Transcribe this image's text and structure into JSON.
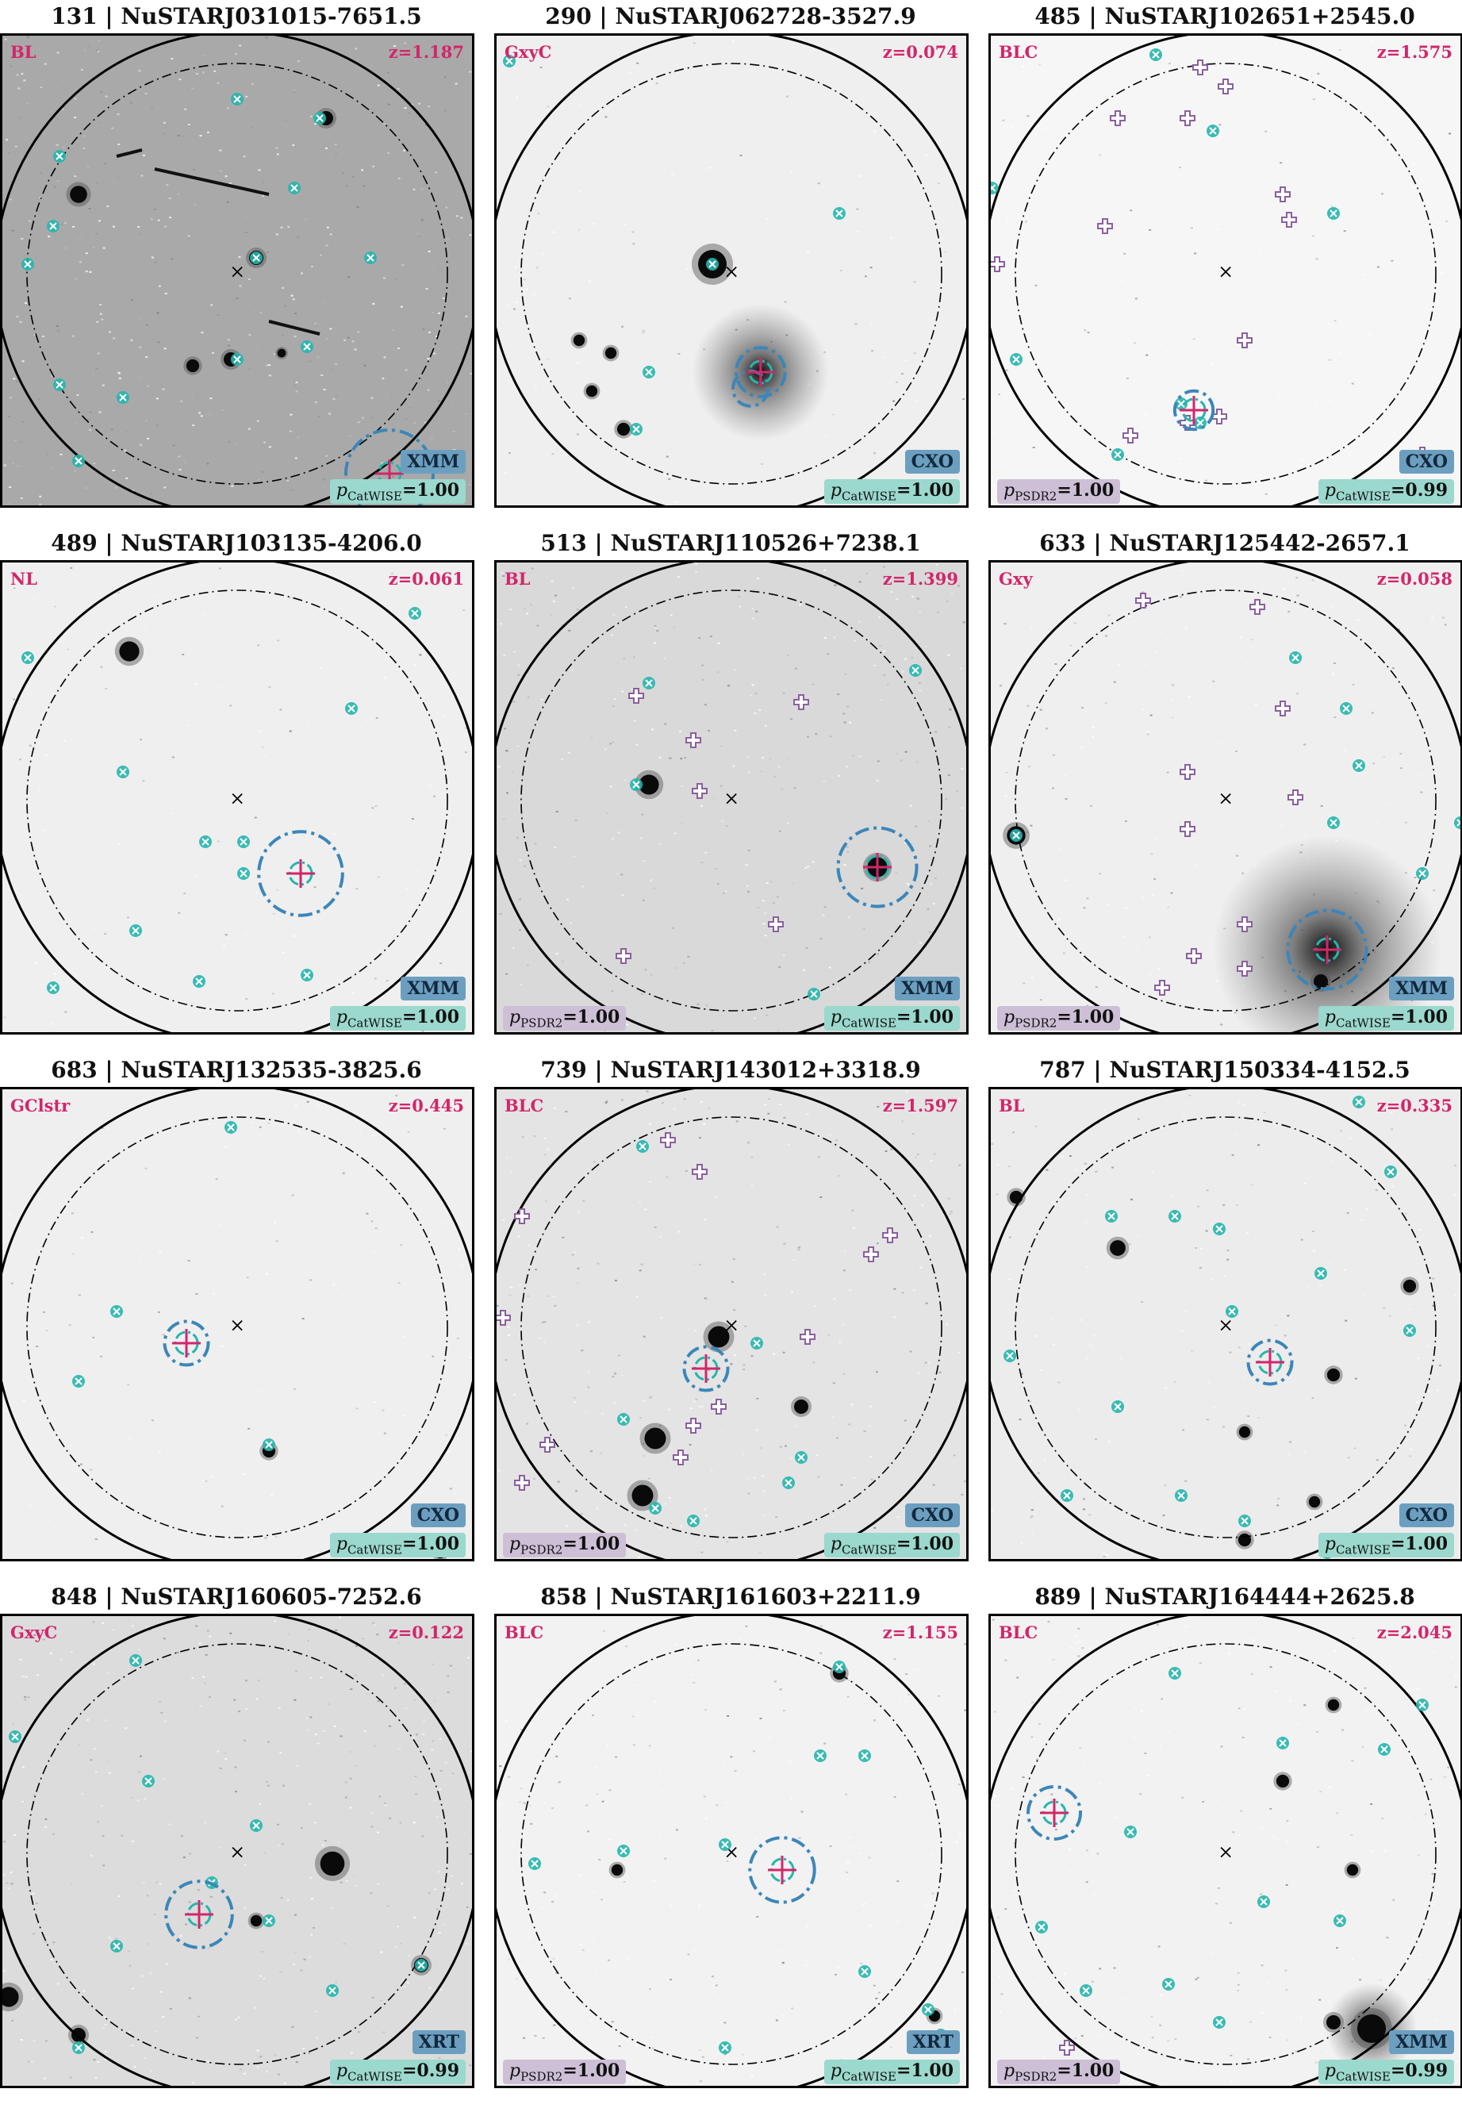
{
  "colors": {
    "classification_text": "#d2266b",
    "instrument_badge": "#6c9fbf",
    "catwise_badge": "#9bd8cd",
    "psdr2_badge": "#cdbfd6",
    "catwise_marker": "#26b5ad",
    "psdr2_marker": "#8a5f9e",
    "xray_position_marker": "#d2266b",
    "error_circle": "#3b86b9"
  },
  "icons": {
    "catwise_source": "cross-x-icon",
    "psdr2_source": "plus-icon",
    "pointing_center": "x-icon",
    "counterpart_position": "plus-icon"
  },
  "panels": [
    {
      "title": "131 | NuSTARJ031015-7651.5",
      "class": "BL",
      "z": "z=1.187",
      "instrument": "XMM",
      "p_catwise": {
        "sym": "p",
        "sub": "CatWISE",
        "val": "=1.00"
      },
      "p_psdr2": null
    },
    {
      "title": "290 | NuSTARJ062728-3527.9",
      "class": "GxyC",
      "z": "z=0.074",
      "instrument": "CXO",
      "p_catwise": {
        "sym": "p",
        "sub": "CatWISE",
        "val": "=1.00"
      },
      "p_psdr2": null
    },
    {
      "title": "485 | NuSTARJ102651+2545.0",
      "class": "BLC",
      "z": "z=1.575",
      "instrument": "CXO",
      "p_catwise": {
        "sym": "p",
        "sub": "CatWISE",
        "val": "=0.99"
      },
      "p_psdr2": {
        "sym": "p",
        "sub": "PSDR2",
        "val": "=1.00"
      }
    },
    {
      "title": "489 | NuSTARJ103135-4206.0",
      "class": "NL",
      "z": "z=0.061",
      "instrument": "XMM",
      "p_catwise": {
        "sym": "p",
        "sub": "CatWISE",
        "val": "=1.00"
      },
      "p_psdr2": null
    },
    {
      "title": "513 | NuSTARJ110526+7238.1",
      "class": "BL",
      "z": "z=1.399",
      "instrument": "XMM",
      "p_catwise": {
        "sym": "p",
        "sub": "CatWISE",
        "val": "=1.00"
      },
      "p_psdr2": {
        "sym": "p",
        "sub": "PSDR2",
        "val": "=1.00"
      }
    },
    {
      "title": "633 | NuSTARJ125442-2657.1",
      "class": "Gxy",
      "z": "z=0.058",
      "instrument": "XMM",
      "p_catwise": {
        "sym": "p",
        "sub": "CatWISE",
        "val": "=1.00"
      },
      "p_psdr2": {
        "sym": "p",
        "sub": "PSDR2",
        "val": "=1.00"
      }
    },
    {
      "title": "683 | NuSTARJ132535-3825.6",
      "class": "GClstr",
      "z": "z=0.445",
      "instrument": "CXO",
      "p_catwise": {
        "sym": "p",
        "sub": "CatWISE",
        "val": "=1.00"
      },
      "p_psdr2": null
    },
    {
      "title": "739 | NuSTARJ143012+3318.9",
      "class": "BLC",
      "z": "z=1.597",
      "instrument": "CXO",
      "p_catwise": {
        "sym": "p",
        "sub": "CatWISE",
        "val": "=1.00"
      },
      "p_psdr2": {
        "sym": "p",
        "sub": "PSDR2",
        "val": "=1.00"
      }
    },
    {
      "title": "787 | NuSTARJ150334-4152.5",
      "class": "BL",
      "z": "z=0.335",
      "instrument": "CXO",
      "p_catwise": {
        "sym": "p",
        "sub": "CatWISE",
        "val": "=1.00"
      },
      "p_psdr2": null
    },
    {
      "title": "848 | NuSTARJ160605-7252.6",
      "class": "GxyC",
      "z": "z=0.122",
      "instrument": "XRT",
      "p_catwise": {
        "sym": "p",
        "sub": "CatWISE",
        "val": "=0.99"
      },
      "p_psdr2": null
    },
    {
      "title": "858 | NuSTARJ161603+2211.9",
      "class": "BLC",
      "z": "z=1.155",
      "instrument": "XRT",
      "p_catwise": {
        "sym": "p",
        "sub": "CatWISE",
        "val": "=1.00"
      },
      "p_psdr2": {
        "sym": "p",
        "sub": "PSDR2",
        "val": "=1.00"
      }
    },
    {
      "title": "889 | NuSTARJ164444+2625.8",
      "class": "BLC",
      "z": "z=2.045",
      "instrument": "XMM",
      "p_catwise": {
        "sym": "p",
        "sub": "CatWISE",
        "val": "=0.99"
      },
      "p_psdr2": {
        "sym": "p",
        "sub": "PSDR2",
        "val": "=1.00"
      }
    }
  ]
}
